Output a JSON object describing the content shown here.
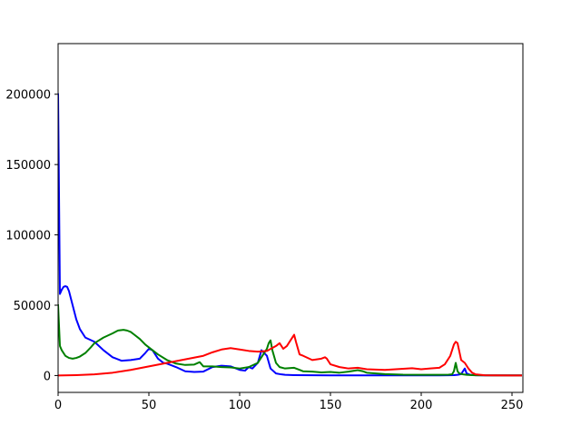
{
  "chart_data": {
    "type": "line",
    "title": "",
    "xlabel": "",
    "ylabel": "",
    "xlim": [
      0,
      256
    ],
    "ylim": [
      -12000,
      236000
    ],
    "grid": false,
    "legend": "none",
    "xticks": [
      0,
      50,
      100,
      150,
      200,
      250
    ],
    "yticks": [
      0,
      50000,
      100000,
      150000,
      200000
    ],
    "xtick_labels": [
      "0",
      "50",
      "100",
      "150",
      "200",
      "250"
    ],
    "ytick_labels": [
      "0",
      "50000",
      "100000",
      "150000",
      "200000"
    ],
    "series": [
      {
        "color": "#0000ff",
        "x": [
          0,
          1,
          2,
          3,
          4,
          5,
          6,
          8,
          10,
          12,
          15,
          20,
          25,
          30,
          35,
          40,
          45,
          48,
          50,
          52,
          55,
          58,
          60,
          65,
          70,
          75,
          80,
          85,
          90,
          95,
          100,
          103,
          105,
          107,
          110,
          112,
          115,
          117,
          120,
          123,
          125,
          130,
          140,
          150,
          160,
          170,
          180,
          190,
          200,
          210,
          215,
          218,
          220,
          222,
          224,
          225,
          227,
          230,
          235,
          240,
          245,
          250,
          255
        ],
        "y": [
          200000,
          58000,
          61000,
          63000,
          63500,
          63000,
          60000,
          50000,
          40000,
          33000,
          27000,
          24000,
          18000,
          13000,
          10500,
          11000,
          12000,
          16000,
          19000,
          18000,
          12000,
          9000,
          8500,
          6000,
          3000,
          2500,
          2800,
          6000,
          7000,
          6500,
          4000,
          3500,
          6000,
          5000,
          9000,
          18000,
          14000,
          5000,
          1500,
          800,
          500,
          300,
          200,
          150,
          150,
          100,
          100,
          100,
          100,
          100,
          200,
          300,
          500,
          1000,
          5000,
          1500,
          500,
          200,
          100,
          100,
          100,
          100,
          100
        ]
      },
      {
        "color": "#008000",
        "x": [
          0,
          1,
          2,
          4,
          6,
          8,
          10,
          12,
          15,
          18,
          20,
          25,
          30,
          33,
          36,
          38,
          40,
          42,
          45,
          48,
          50,
          55,
          60,
          65,
          70,
          75,
          78,
          80,
          85,
          90,
          95,
          100,
          105,
          110,
          113,
          115,
          116,
          117,
          118,
          120,
          122,
          125,
          130,
          133,
          135,
          140,
          145,
          150,
          155,
          160,
          165,
          168,
          170,
          175,
          180,
          190,
          200,
          210,
          215,
          217,
          218,
          219,
          220,
          221,
          223,
          225,
          228,
          230,
          240,
          250,
          255
        ],
        "y": [
          50000,
          21000,
          18000,
          14000,
          12500,
          12000,
          12500,
          13500,
          16000,
          20000,
          23000,
          27000,
          30000,
          32000,
          32500,
          32000,
          31000,
          29000,
          26000,
          22000,
          20000,
          15000,
          11000,
          8500,
          7500,
          7800,
          9500,
          6500,
          6500,
          6000,
          5800,
          5000,
          6000,
          9000,
          15000,
          19000,
          23000,
          25000,
          18000,
          9000,
          6000,
          5000,
          5500,
          4000,
          3000,
          2800,
          2200,
          2500,
          2000,
          2800,
          3800,
          3000,
          2000,
          1500,
          1000,
          600,
          500,
          500,
          600,
          800,
          3000,
          9000,
          3000,
          1500,
          800,
          500,
          300,
          200,
          100,
          100,
          100
        ]
      },
      {
        "color": "#ff0000",
        "x": [
          0,
          10,
          20,
          30,
          40,
          50,
          60,
          70,
          80,
          85,
          90,
          95,
          100,
          105,
          110,
          115,
          120,
          122,
          124,
          126,
          128,
          130,
          131,
          133,
          135,
          140,
          145,
          147,
          148,
          150,
          155,
          160,
          165,
          170,
          180,
          190,
          195,
          200,
          205,
          210,
          213,
          216,
          218,
          219,
          220,
          221,
          222,
          224,
          226,
          228,
          230,
          235,
          240,
          250,
          255
        ],
        "y": [
          0,
          300,
          800,
          2000,
          4000,
          6500,
          9000,
          11500,
          14000,
          16500,
          18500,
          19500,
          18500,
          17500,
          17000,
          17500,
          21000,
          23000,
          19000,
          21000,
          25000,
          29000,
          24000,
          15000,
          14000,
          11000,
          12000,
          13000,
          12000,
          8000,
          6000,
          5000,
          5500,
          4500,
          4000,
          4800,
          5200,
          4500,
          5000,
          5500,
          8000,
          14000,
          22000,
          24000,
          23000,
          17000,
          11000,
          9000,
          5000,
          2000,
          800,
          200,
          100,
          50,
          50
        ]
      }
    ]
  }
}
